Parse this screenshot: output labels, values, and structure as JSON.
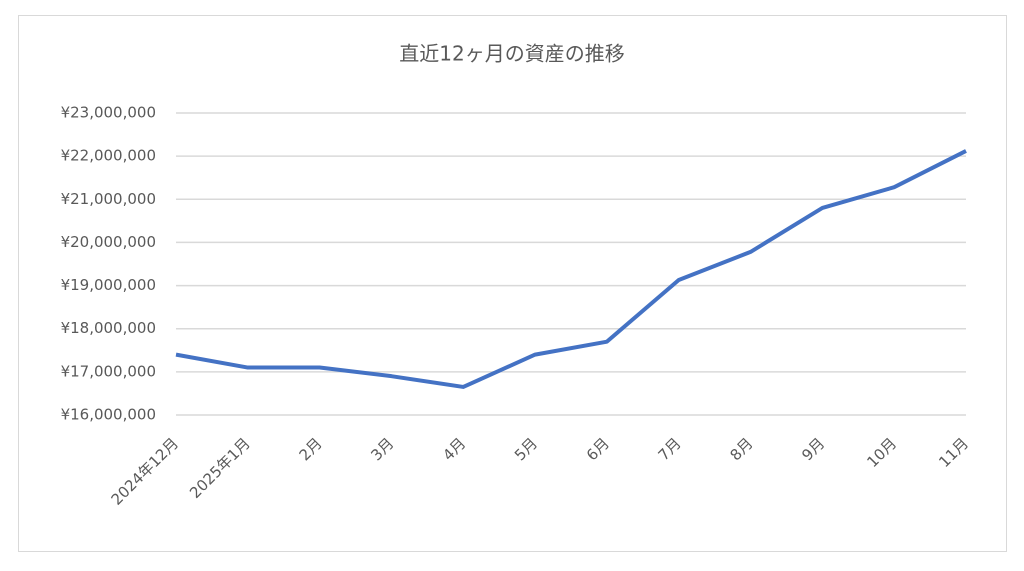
{
  "chart_data": {
    "type": "line",
    "title": "直近12ヶ月の資産の推移",
    "categories": [
      "2024年12月",
      "2025年1月",
      "2月",
      "3月",
      "4月",
      "5月",
      "6月",
      "7月",
      "8月",
      "9月",
      "10月",
      "11月"
    ],
    "values": [
      17400000,
      17100000,
      17100000,
      16900000,
      16650000,
      17400000,
      17700000,
      19130000,
      19780000,
      20800000,
      21280000,
      22120000
    ],
    "color": "#4472c4",
    "ylim": [
      16000000,
      23000000
    ],
    "yticks": [
      {
        "value": 16000000,
        "label": "¥16,000,000"
      },
      {
        "value": 17000000,
        "label": "¥17,000,000"
      },
      {
        "value": 18000000,
        "label": "¥18,000,000"
      },
      {
        "value": 19000000,
        "label": "¥19,000,000"
      },
      {
        "value": 20000000,
        "label": "¥20,000,000"
      },
      {
        "value": 21000000,
        "label": "¥21,000,000"
      },
      {
        "value": 22000000,
        "label": "¥22,000,000"
      },
      {
        "value": 23000000,
        "label": "¥23,000,000"
      }
    ],
    "grid": true
  }
}
